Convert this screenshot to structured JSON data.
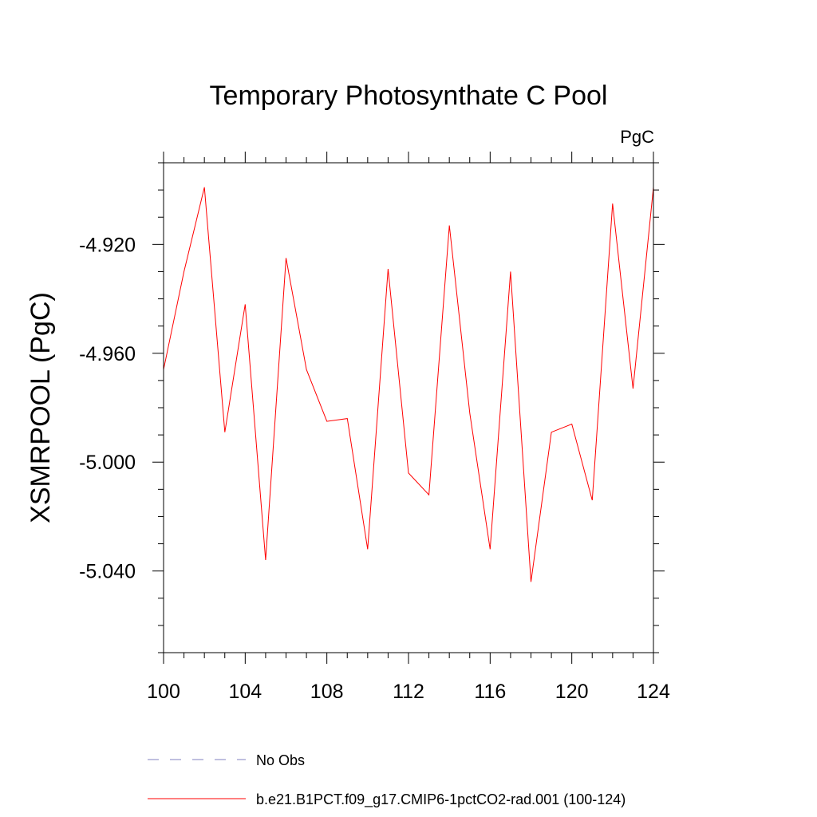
{
  "chart_data": {
    "type": "line",
    "title": "Temporary Photosynthate C Pool",
    "units_label": "PgC",
    "xlabel": "",
    "ylabel": "XSMRPOOL  (PgC)",
    "xlim": [
      100,
      124
    ],
    "ylim": [
      -5.07,
      -4.89
    ],
    "x_ticks": [
      100,
      104,
      108,
      112,
      116,
      120,
      124
    ],
    "x_tick_labels": [
      "100",
      "104",
      "108",
      "112",
      "116",
      "120",
      "124"
    ],
    "y_ticks": [
      -4.92,
      -4.96,
      -5.0,
      -5.04
    ],
    "y_tick_labels": [
      "-4.920",
      "-4.960",
      "-5.000",
      "-5.040"
    ],
    "x_minor_step": 1,
    "y_minor_step": 0.01,
    "grid": false,
    "legend_position": "bottom",
    "series": [
      {
        "name": "b.e21.B1PCT.f09_g17.CMIP6-1pctCO2-rad.001 (100-124)",
        "color": "#ff0000",
        "style": "solid",
        "x": [
          100,
          101,
          102,
          103,
          104,
          105,
          106,
          107,
          108,
          109,
          110,
          111,
          112,
          113,
          114,
          115,
          116,
          117,
          118,
          119,
          120,
          121,
          122,
          123,
          124
        ],
        "y": [
          -4.966,
          -4.93,
          -4.899,
          -4.989,
          -4.942,
          -5.036,
          -4.925,
          -4.966,
          -4.985,
          -4.984,
          -5.032,
          -4.929,
          -5.004,
          -5.012,
          -4.913,
          -4.982,
          -5.032,
          -4.93,
          -5.044,
          -4.989,
          -4.986,
          -5.014,
          -4.905,
          -4.973,
          -4.899
        ]
      }
    ],
    "legend": [
      {
        "label": "No Obs",
        "color": "#8080c0",
        "style": "dashed"
      },
      {
        "label": "b.e21.B1PCT.f09_g17.CMIP6-1pctCO2-rad.001 (100-124)",
        "color": "#ff0000",
        "style": "solid"
      }
    ]
  }
}
